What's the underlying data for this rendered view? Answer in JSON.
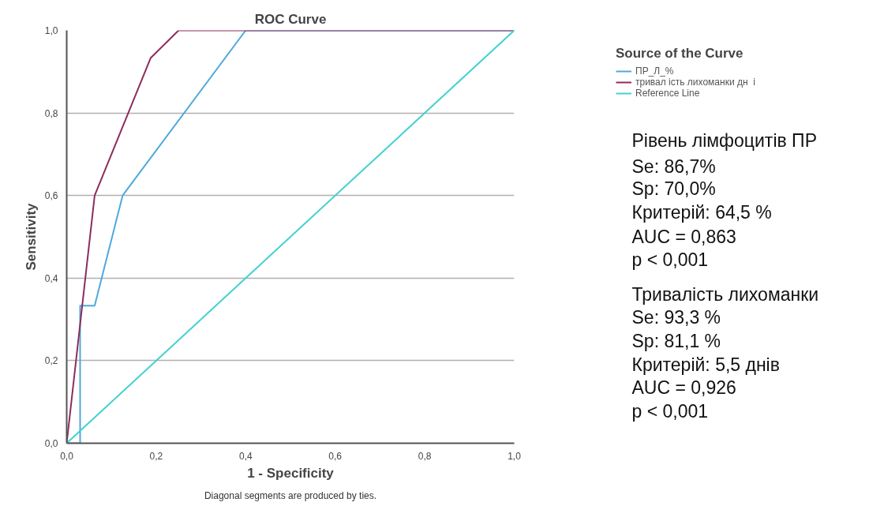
{
  "chart_data": {
    "type": "line",
    "title": "ROC Curve",
    "xlabel": "1 - Specificity",
    "ylabel": "Sensitivity",
    "legend_title": "Source of the Curve",
    "xlim": [
      0,
      1
    ],
    "ylim": [
      0,
      1
    ],
    "xticks": [
      {
        "value": 0,
        "label": "0,0"
      },
      {
        "value": 0.2,
        "label": "0,2"
      },
      {
        "value": 0.4,
        "label": "0,4"
      },
      {
        "value": 0.6,
        "label": "0,6"
      },
      {
        "value": 0.8,
        "label": "0,8"
      },
      {
        "value": 1,
        "label": "1,0"
      }
    ],
    "yticks": [
      {
        "value": 0,
        "label": "0,0"
      },
      {
        "value": 0.2,
        "label": "0,2"
      },
      {
        "value": 0.4,
        "label": "0,4"
      },
      {
        "value": 0.6,
        "label": "0,6"
      },
      {
        "value": 0.8,
        "label": "0,8"
      },
      {
        "value": 1,
        "label": "1,0"
      }
    ],
    "grid": "y",
    "legend": "right",
    "marker": "none",
    "line_style": "solid",
    "series": [
      {
        "name": "ПР_Л_%",
        "color": "#4ea9dc",
        "x": [
          0,
          0.03,
          0.03,
          0.0625,
          0.125,
          0.4,
          1
        ],
        "values": [
          0,
          0,
          0.333,
          0.333,
          0.6,
          1,
          1
        ]
      },
      {
        "name": "тривал ість лихоманки дн  і",
        "color": "#8c2d5c",
        "x": [
          0,
          0.0625,
          0.1875,
          0.25,
          1
        ],
        "values": [
          0,
          0.6,
          0.933,
          1,
          1
        ]
      },
      {
        "name": "Reference Line",
        "color": "#45d0d0",
        "x": [
          0,
          1
        ],
        "values": [
          0,
          1
        ]
      }
    ],
    "annotations": [
      "Рівень лімфоцитів ПР",
      "Se: 86,7%",
      "Sp: 70,0%",
      "Критерій: 64,5 %",
      "AUC = 0,863",
      "p < 0,001",
      "Тривалість лихоманки",
      "Se: 93,3 %",
      "Sp: 81,1 %",
      "Критерій: 5,5 днів",
      "AUC = 0,926",
      "p < 0,001",
      "Diagonal segments are produced by ties."
    ]
  }
}
